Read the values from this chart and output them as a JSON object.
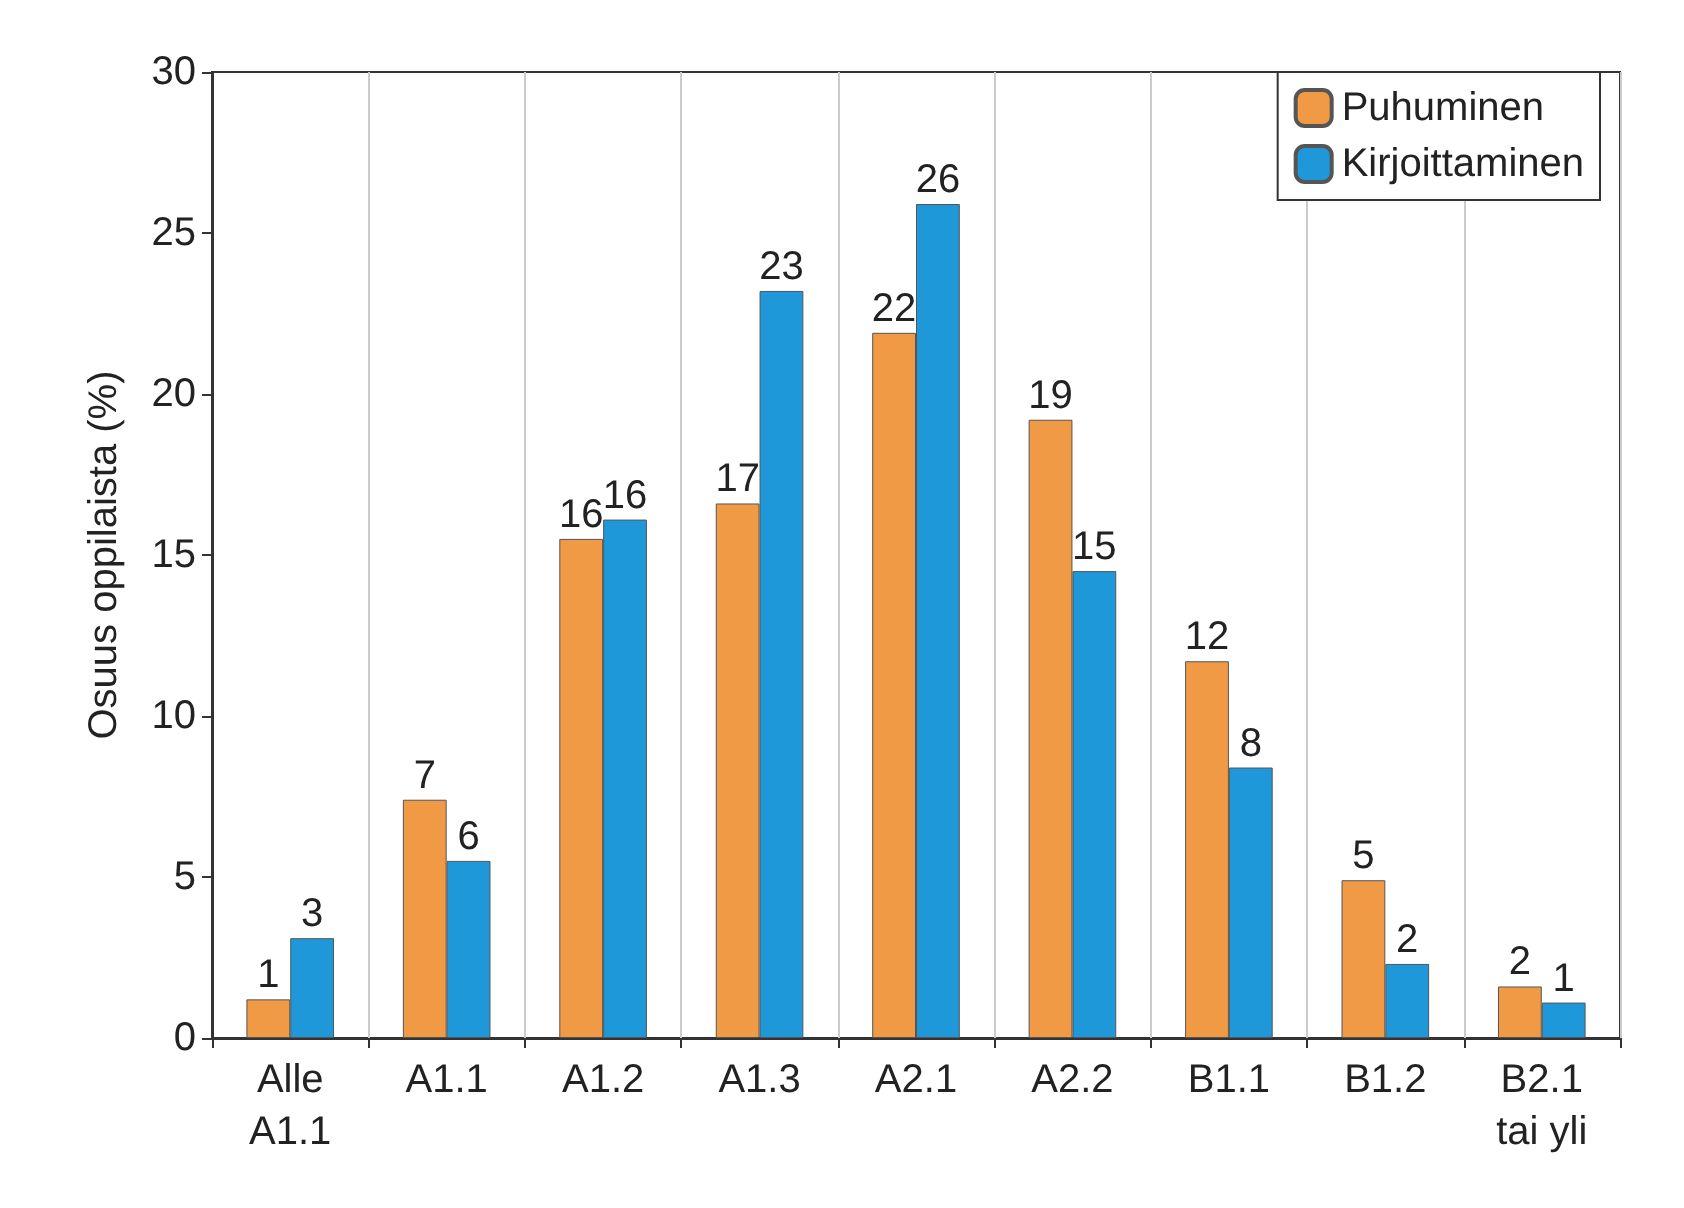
{
  "chart_data": {
    "type": "bar",
    "ylabel": "Osuus oppilaista (%)",
    "categories": [
      "Alle\nA1.1",
      "A1.1",
      "A1.2",
      "A1.3",
      "A2.1",
      "A2.2",
      "B1.1",
      "B1.2",
      "B2.1\ntai yli"
    ],
    "series": [
      {
        "name": "Puhuminen",
        "color": "#f09a45",
        "values": [
          1.2,
          7.4,
          15.5,
          16.6,
          21.9,
          19.2,
          11.7,
          4.9,
          1.6
        ],
        "value_labels": [
          "1",
          "7",
          "16",
          "17",
          "22",
          "19",
          "12",
          "5",
          "2"
        ]
      },
      {
        "name": "Kirjoittaminen",
        "color": "#1e98d8",
        "values": [
          3.1,
          5.5,
          16.1,
          23.2,
          25.9,
          14.5,
          8.4,
          2.3,
          1.1
        ],
        "value_labels": [
          "3",
          "6",
          "16",
          "23",
          "26",
          "15",
          "8",
          "2",
          "1"
        ]
      }
    ],
    "ylim": [
      0,
      30
    ],
    "yticks": [
      0,
      5,
      10,
      15,
      20,
      25,
      30
    ],
    "grid": "x",
    "legend": "top right"
  }
}
